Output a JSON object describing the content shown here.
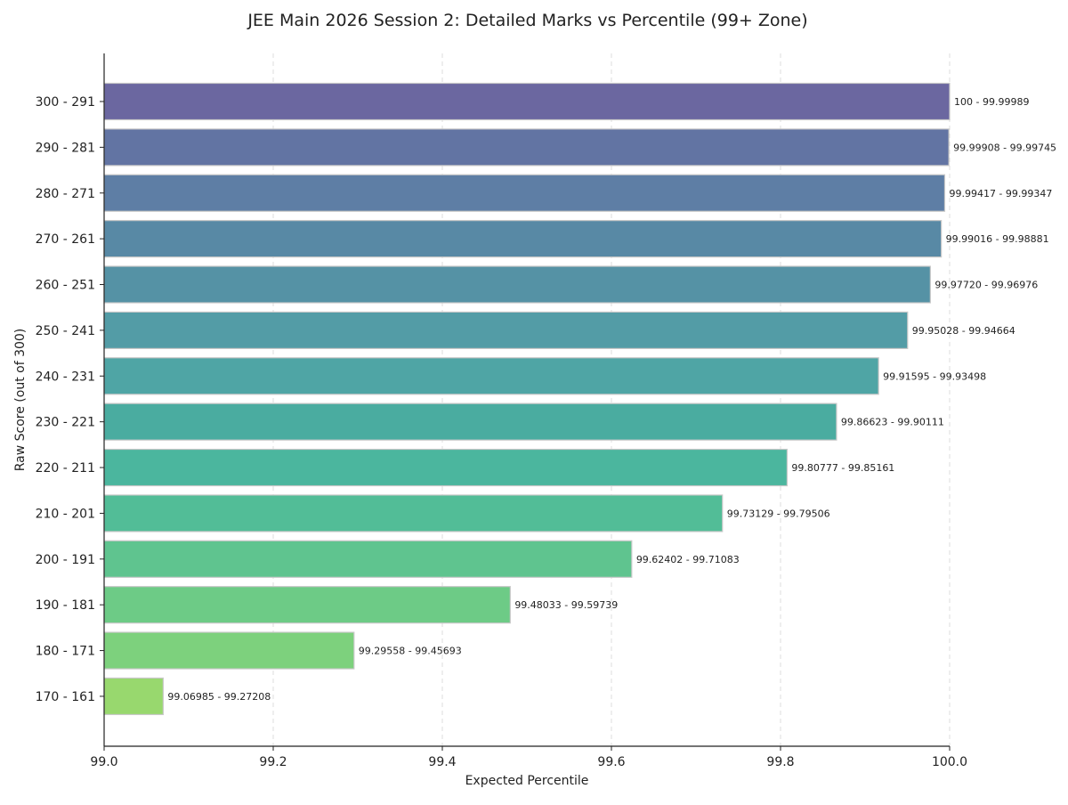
{
  "chart_data": {
    "type": "bar",
    "orientation": "horizontal",
    "title": "JEE Main 2026 Session 2: Detailed Marks vs Percentile (99+ Zone)",
    "xlabel": "Expected Percentile",
    "ylabel": "Raw Score (out of 300)",
    "xlim": [
      99.0,
      100.0
    ],
    "xticks": [
      "99.0",
      "99.2",
      "99.4",
      "99.6",
      "99.8",
      "100.0"
    ],
    "grid": "x dashed",
    "categories": [
      "300 - 291",
      "290 - 281",
      "280 - 271",
      "270 - 261",
      "260 - 251",
      "250 - 241",
      "240 - 231",
      "230 - 221",
      "220 - 211",
      "210 - 201",
      "200 - 191",
      "190 - 181",
      "180 - 171",
      "170 - 161"
    ],
    "values": [
      100,
      99.99908,
      99.99417,
      99.99016,
      99.9772,
      99.95028,
      99.91595,
      99.86623,
      99.80777,
      99.73129,
      99.62402,
      99.48033,
      99.29558,
      99.06985
    ],
    "data_labels": [
      "100 - 99.99989",
      "99.99908 - 99.99745",
      "99.99417 - 99.99347",
      "99.99016 - 99.98881",
      "99.97720 - 99.96976",
      "99.95028 - 99.94664",
      "99.91595 - 99.93498",
      "99.86623 - 99.90111",
      "99.80777 - 99.85161",
      "99.73129 - 99.79506",
      "99.62402 - 99.71083",
      "99.48033 - 99.59739",
      "99.29558 - 99.45693",
      "99.06985 - 99.27208"
    ],
    "colors": [
      "#6b67a0",
      "#6274a3",
      "#5e7ea5",
      "#5889a5",
      "#5592a5",
      "#539ca6",
      "#4fa5a5",
      "#4aaca0",
      "#4bb69e",
      "#52bd97",
      "#5fc48f",
      "#6dcb86",
      "#7dd17d",
      "#98d86e"
    ]
  }
}
